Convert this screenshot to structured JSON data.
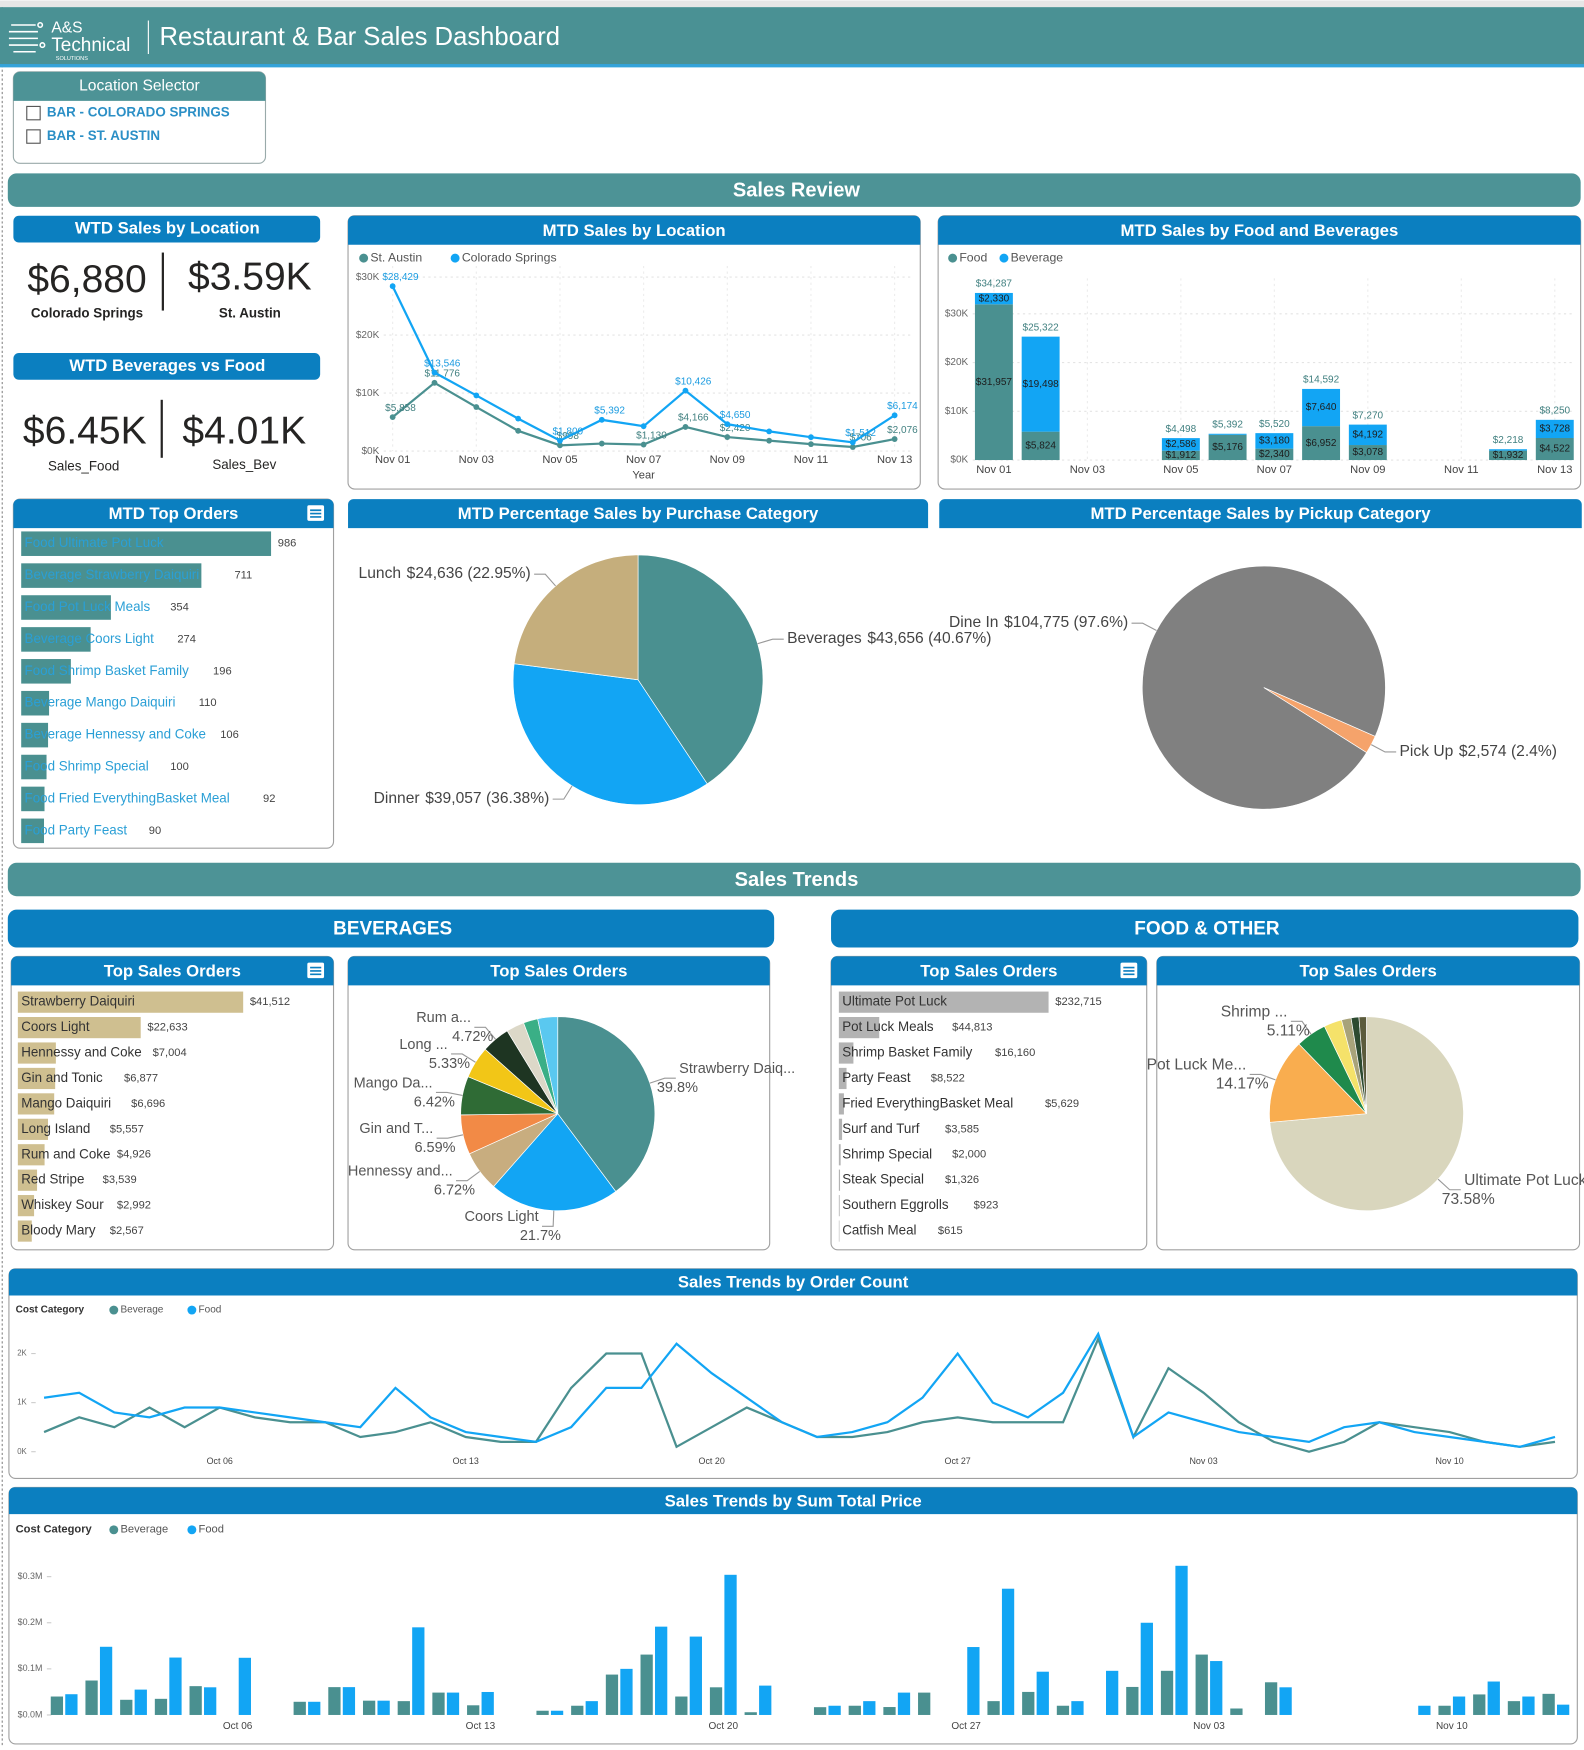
{
  "header": {
    "logo": [
      "A&S",
      "Technical",
      "SOLUTIONS"
    ],
    "title": "Restaurant & Bar Sales Dashboard"
  },
  "location_selector": {
    "title": "Location Selector",
    "options": [
      "BAR - COLORADO SPRINGS",
      "BAR - ST. AUSTIN"
    ]
  },
  "sections": [
    "Sales Review",
    "Sales Trends"
  ],
  "subsections": [
    "BEVERAGES",
    "FOOD & OTHER"
  ],
  "kpis": [
    {
      "title": "WTD Sales by Location",
      "items": [
        {
          "value": "$6,880",
          "label": "Colorado Springs"
        },
        {
          "value": "$3.59K",
          "label": "St. Austin"
        }
      ]
    },
    {
      "title": "WTD Beverages vs Food",
      "items": [
        {
          "value": "$6.45K",
          "label": "Sales_Food"
        },
        {
          "value": "$4.01K",
          "label": "Sales_Bev"
        }
      ]
    }
  ],
  "chart_data": [
    {
      "type": "line",
      "title": "MTD Sales by Location",
      "x_label": "Year",
      "categories": [
        "Nov 01",
        null,
        "Nov 03",
        null,
        "Nov 05",
        null,
        "Nov 07",
        null,
        "Nov 09",
        null,
        "Nov 11",
        null,
        "Nov 13"
      ],
      "series": [
        {
          "name": "St. Austin",
          "color": "#4a9090",
          "values": [
            5858,
            11776,
            7600,
            3500,
            998,
            1300,
            1130,
            4166,
            2420,
            1800,
            1200,
            706,
            2076
          ],
          "value_labels": [
            "$5,858",
            "$11,776",
            null,
            null,
            "$998",
            null,
            "$1,130",
            "$4,166",
            "$2,420",
            null,
            null,
            "$706",
            "$2,076"
          ]
        },
        {
          "name": "Colorado Springs",
          "color": "#12a5f4",
          "values": [
            28429,
            13546,
            9600,
            5600,
            1800,
            5392,
            4300,
            10426,
            4650,
            3400,
            2400,
            1512,
            6174
          ],
          "value_labels": [
            "$28,429",
            "$13,546",
            null,
            null,
            "$1,800",
            "$5,392",
            null,
            "$10,426",
            "$4,650",
            null,
            null,
            "$1,512",
            "$6,174"
          ]
        }
      ],
      "ylim": [
        0,
        30000
      ],
      "yticks": [
        {
          "value": 0,
          "label": "$0K"
        },
        {
          "value": 10000,
          "label": "$10K"
        },
        {
          "value": 20000,
          "label": "$20K"
        },
        {
          "value": 30000,
          "label": "$30K"
        }
      ],
      "grid": true,
      "markers": true
    },
    {
      "type": "bar",
      "stacked": true,
      "title": "MTD Sales by Food and Beverages",
      "categories": [
        "Nov 01",
        null,
        "Nov 03",
        null,
        "Nov 05",
        null,
        "Nov 07",
        null,
        "Nov 09",
        null,
        "Nov 11",
        null,
        "Nov 13"
      ],
      "series": [
        {
          "name": "Food",
          "color": "#4a9090",
          "values": [
            31957,
            5824,
            null,
            null,
            1912,
            5176,
            2340,
            6952,
            3078,
            null,
            null,
            1932,
            4522
          ],
          "value_labels": [
            "$31,957",
            "$5,824",
            null,
            null,
            "$1,912",
            "$5,176",
            "$2,340",
            "$6,952",
            "$3,078",
            null,
            null,
            "$1,932",
            "$4,522"
          ]
        },
        {
          "name": "Beverage",
          "color": "#12a5f4",
          "values": [
            2330,
            19498,
            null,
            null,
            2586,
            216,
            3180,
            7640,
            4192,
            null,
            null,
            286,
            3728
          ],
          "value_labels": [
            "$2,330",
            "$19,498",
            null,
            null,
            "$2,586",
            null,
            "$3,180",
            "$7,640",
            "$4,192",
            null,
            null,
            null,
            "$3,728"
          ]
        }
      ],
      "total_labels": [
        "$34,287",
        "$25,322",
        null,
        null,
        "$4,498",
        "$5,392",
        "$5,520",
        "$14,592",
        "$7,270",
        null,
        null,
        "$2,218",
        "$8,250"
      ],
      "ylim": [
        0,
        35000
      ],
      "yticks": [
        {
          "value": 0,
          "label": "$0K"
        },
        {
          "value": 10000,
          "label": "$10K"
        },
        {
          "value": 20000,
          "label": "$20K"
        },
        {
          "value": 30000,
          "label": "$30K"
        }
      ],
      "grid": true
    },
    {
      "type": "hbar",
      "title": "MTD Top Orders",
      "color": "#4a9090",
      "categories": [
        "Food Ultimate Pot Luck",
        "Beverage Strawberry Daiquiri",
        "Food Pot Luck Meals",
        "Beverage Coors Light",
        "Food Shrimp Basket Family",
        "Beverage Mango Daiquiri",
        "Beverage Hennessy and Coke",
        "Food Shrimp Special",
        "Food Fried EverythingBasket Meal",
        "Food Party Feast"
      ],
      "values": [
        986,
        711,
        354,
        274,
        196,
        110,
        106,
        100,
        92,
        90
      ]
    },
    {
      "type": "pie",
      "title": "MTD Percentage Sales by Purchase Category",
      "categories": [
        "Beverages",
        "Dinner",
        "Lunch"
      ],
      "values": [
        43656,
        39057,
        24636
      ],
      "value_labels": [
        "$43,656 (40.67%)",
        "$39,057 (36.38%)",
        "$24,636 (22.95%)"
      ],
      "colors": [
        "#4a9090",
        "#12a5f4",
        "#c5ae7c"
      ]
    },
    {
      "type": "pie",
      "title": "MTD Percentage Sales by Pickup Category",
      "categories": [
        "Dine In",
        "Pick Up"
      ],
      "values": [
        104775,
        2574
      ],
      "value_labels": [
        "$104,775 (97.6%)",
        "$2,574 (2.4%)"
      ],
      "colors": [
        "#808080",
        "#f5a36b"
      ]
    },
    {
      "type": "hbar",
      "title": "Top Sales Orders",
      "color": "#cfbf90",
      "categories": [
        "Strawberry Daiquiri",
        "Coors Light",
        "Hennessy and Coke",
        "Gin and Tonic",
        "Mango Daiquiri",
        "Long Island",
        "Rum and Coke",
        "Red Stripe",
        "Whiskey Sour",
        "Bloody Mary"
      ],
      "values": [
        41512,
        22633,
        7004,
        6877,
        6696,
        5557,
        4926,
        3539,
        2992,
        2567
      ],
      "value_labels": [
        "$41,512",
        "$22,633",
        "$7,004",
        "$6,877",
        "$6,696",
        "$5,557",
        "$4,926",
        "$3,539",
        "$2,992",
        "$2,567"
      ]
    },
    {
      "type": "pie",
      "title": "Top Sales Orders",
      "categories": [
        "Strawberry Daiq...",
        "Coors Light",
        "Hennessy and...",
        "Gin and T...",
        "Mango Da...",
        "Long ...",
        "Rum a...",
        null,
        null,
        null
      ],
      "values": [
        39.8,
        21.7,
        6.72,
        6.59,
        6.42,
        5.33,
        4.72,
        3.0,
        2.4,
        3.32
      ],
      "value_labels": [
        "39.8%",
        "21.7%",
        "6.72%",
        "6.59%",
        "6.42%",
        "5.33%",
        "4.72%",
        null,
        null,
        null
      ],
      "colors": [
        "#4a9090",
        "#12a5f4",
        "#c8ad7f",
        "#f28a46",
        "#2f6b35",
        "#f2c617",
        "#1e3522",
        "#dcd8c8",
        "#3aaf86",
        "#5ac8f0"
      ]
    },
    {
      "type": "hbar",
      "title": "Top Sales Orders",
      "color": "#b3b3b3",
      "categories": [
        "Ultimate Pot Luck",
        "Pot Luck Meals",
        "Shrimp Basket Family",
        "Party Feast",
        "Fried EverythingBasket Meal",
        "Surf and Turf",
        "Shrimp Special",
        "Steak Special",
        "Southern Eggrolls",
        "Catfish Meal"
      ],
      "values": [
        232715,
        44813,
        16160,
        8522,
        5629,
        3585,
        2000,
        1326,
        923,
        615
      ],
      "value_labels": [
        "$232,715",
        "$44,813",
        "$16,160",
        "$8,522",
        "$5,629",
        "$3,585",
        "$2,000",
        "$1,326",
        "$923",
        "$615"
      ]
    },
    {
      "type": "pie",
      "title": "Top Sales Orders",
      "categories": [
        "Ultimate Pot Luck",
        "Pot Luck Me...",
        "Shrimp ...",
        null,
        null,
        null,
        null
      ],
      "values": [
        73.58,
        14.17,
        5.11,
        3.0,
        1.6,
        1.3,
        1.24
      ],
      "value_labels": [
        "73.58%",
        "14.17%",
        "5.11%",
        null,
        null,
        null,
        null
      ],
      "colors": [
        "#d9d6bd",
        "#f9ad4f",
        "#1f8a4c",
        "#f5e26a",
        "#a8a37a",
        "#2d4a30",
        "#5b5b3c"
      ]
    },
    {
      "type": "line",
      "title": "Sales Trends by Order Count",
      "legend_title": "Cost Category",
      "categories": [
        null,
        null,
        null,
        null,
        null,
        "Oct 06",
        null,
        null,
        null,
        null,
        null,
        null,
        "Oct 13",
        null,
        null,
        null,
        null,
        null,
        null,
        "Oct 20",
        null,
        null,
        null,
        null,
        null,
        null,
        "Oct 27",
        null,
        null,
        null,
        null,
        null,
        null,
        "Nov 03",
        null,
        null,
        null,
        null,
        null,
        null,
        "Nov 10",
        null,
        null,
        null
      ],
      "series": [
        {
          "name": "Beverage",
          "color": "#4a9090",
          "values": [
            0.4,
            0.7,
            0.5,
            0.9,
            0.5,
            0.9,
            0.7,
            0.6,
            0.6,
            0.3,
            0.4,
            0.6,
            0.3,
            0.2,
            0.2,
            1.3,
            2.0,
            2.0,
            0.1,
            0.5,
            0.9,
            0.6,
            0.3,
            0.3,
            0.4,
            0.6,
            0.7,
            0.6,
            0.6,
            0.6,
            2.3,
            0.3,
            1.7,
            1.2,
            0.6,
            0.2,
            0.0,
            0.2,
            0.6,
            0.5,
            0.4,
            0.2,
            0.1,
            0.2
          ]
        },
        {
          "name": "Food",
          "color": "#12a5f4",
          "values": [
            1.1,
            1.2,
            0.8,
            0.7,
            0.9,
            0.9,
            0.8,
            0.7,
            0.6,
            0.5,
            1.3,
            0.7,
            0.4,
            0.3,
            0.2,
            0.5,
            1.3,
            1.3,
            2.2,
            1.6,
            1.1,
            0.6,
            0.3,
            0.4,
            0.6,
            1.1,
            2.0,
            1.0,
            0.7,
            1.2,
            2.4,
            0.3,
            0.8,
            0.6,
            0.4,
            0.3,
            0.2,
            0.5,
            0.6,
            0.4,
            0.3,
            0.2,
            0.1,
            0.3
          ]
        }
      ],
      "ylim": [
        0,
        2.5
      ],
      "yticks": [
        {
          "value": 0,
          "label": "0K"
        },
        {
          "value": 1,
          "label": "1K"
        },
        {
          "value": 2,
          "label": "2K"
        }
      ],
      "grid": false,
      "markers": false
    },
    {
      "type": "bar",
      "stacked": false,
      "title": "Sales Trends by Sum Total Price",
      "legend_title": "Cost Category",
      "categories": [
        null,
        null,
        null,
        null,
        null,
        "Oct 06",
        null,
        null,
        null,
        null,
        null,
        null,
        "Oct 13",
        null,
        null,
        null,
        null,
        null,
        null,
        "Oct 20",
        null,
        null,
        null,
        null,
        null,
        null,
        "Oct 27",
        null,
        null,
        null,
        null,
        null,
        null,
        "Nov 03",
        null,
        null,
        null,
        null,
        null,
        null,
        "Nov 10",
        null,
        null,
        null
      ],
      "series": [
        {
          "name": "Beverage",
          "color": "#4a9090",
          "values": [
            40000,
            74714,
            32906,
            35000,
            62514,
            null,
            null,
            28580,
            60379,
            30990,
            30000,
            48522,
            20970,
            null,
            9174,
            20000,
            87594,
            130964,
            40000,
            60000,
            5914,
            null,
            16884,
            20000,
            17184,
            48487,
            null,
            30000,
            49986,
            20000,
            null,
            60776,
            95747,
            130964,
            14030,
            70885,
            null,
            null,
            null,
            null,
            20000,
            44533,
            30000,
            45822
          ]
        },
        {
          "name": "Food",
          "color": "#12a5f4",
          "values": [
            45000,
            147882,
            55000,
            124529,
            60000,
            124000,
            null,
            28580,
            60379,
            30990,
            190076,
            48522,
            49853,
            null,
            9174,
            30000,
            100000,
            191553,
            170000,
            303998,
            63652,
            null,
            20000,
            30000,
            48487,
            null,
            147320,
            273836,
            93833,
            30000,
            95747,
            200000,
            323533,
            116934,
            null,
            60000,
            null,
            null,
            null,
            20000,
            40000,
            72530,
            40000,
            22368
          ]
        }
      ],
      "ylim": [
        0,
        330000
      ],
      "yticks": [
        {
          "value": 0,
          "label": "$0.0M"
        },
        {
          "value": 100000,
          "label": "$0.1M"
        },
        {
          "value": 200000,
          "label": "$0.2M"
        },
        {
          "value": 300000,
          "label": "$0.3M"
        }
      ],
      "grid": false
    }
  ]
}
